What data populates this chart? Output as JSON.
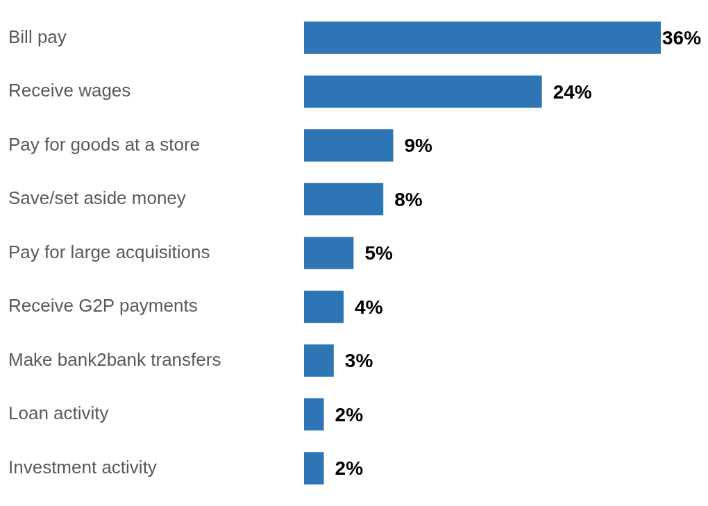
{
  "chart_data": {
    "type": "bar",
    "orientation": "horizontal",
    "categories": [
      "Bill pay",
      "Receive wages",
      "Pay for goods at a store",
      "Save/set aside money",
      "Pay for large acquisitions",
      "Receive G2P payments",
      "Make bank2bank transfers",
      "Loan activity",
      "Investment activity"
    ],
    "values": [
      36,
      24,
      9,
      8,
      5,
      4,
      3,
      2,
      2
    ],
    "value_labels": [
      "36%",
      "24%",
      "9%",
      "8%",
      "5%",
      "4%",
      "3%",
      "2%",
      "2%"
    ],
    "color": "#2e75b6",
    "grid": false,
    "legend": false
  }
}
